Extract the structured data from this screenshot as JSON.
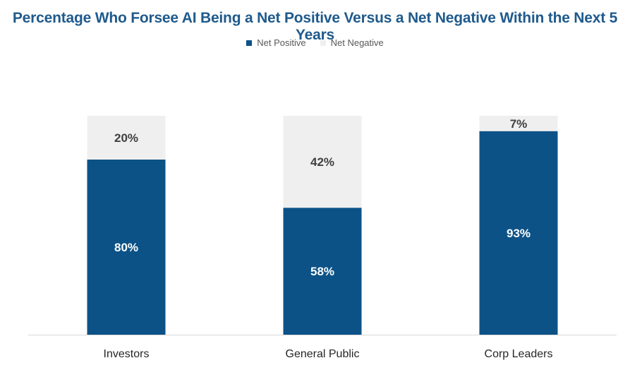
{
  "title": "Percentage Who Forsee AI Being a Net Positive Versus a Net Negative Within the Next 5 Years",
  "legend": [
    {
      "label": "Net Positive",
      "color": "#0c5287"
    },
    {
      "label": "Net Negative",
      "color": "#efefef"
    }
  ],
  "chart_data": {
    "type": "bar",
    "stacked": true,
    "categories": [
      "Investors",
      "General Public",
      "Corp Leaders"
    ],
    "series": [
      {
        "name": "Net Positive",
        "color": "#0c5287",
        "label_color": "#ffffff",
        "values": [
          80,
          58,
          93
        ],
        "labels": [
          "80%",
          "58%",
          "93%"
        ]
      },
      {
        "name": "Net Negative",
        "color": "#efefef",
        "label_color": "#404040",
        "values": [
          20,
          42,
          7
        ],
        "labels": [
          "20%",
          "42%",
          "7%"
        ]
      }
    ],
    "ylim": [
      0,
      100
    ],
    "grid": false,
    "legend_position": "top-center"
  }
}
